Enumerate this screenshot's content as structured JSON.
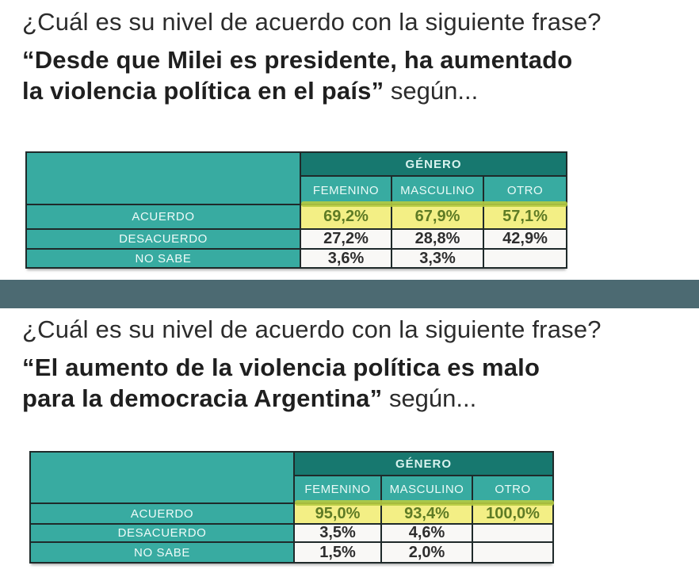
{
  "colors": {
    "teal_header_dark": "#17786f",
    "teal_cell": "#38aba1",
    "table_border": "#1f2a2a",
    "highlight_background": "#f3ef85",
    "highlight_text": "#5e7b25",
    "highlight_overshoot_strip": "#b6cb40",
    "divider_bar": "#4c6a72",
    "question_text": "#2c2c2c",
    "value_text": "#2e2e2e",
    "page_background": "#ffffff"
  },
  "sections": [
    {
      "question": "¿Cuál es su nivel de acuerdo con la siguiente frase?",
      "quote_line1": "“Desde que Milei es presidente, ha aumentado",
      "quote_line2": "la violencia política en el país”",
      "quote_suffix": " según..."
    },
    {
      "question": "¿Cuál es su nivel de acuerdo con la siguiente frase?",
      "quote_line1": "“El aumento de la violencia política es malo",
      "quote_line2": "para la democracia Argentina”",
      "quote_suffix": " según..."
    }
  ],
  "chart_data": [
    {
      "type": "table",
      "title": "Nivel de acuerdo con la frase “Desde que Milei es presidente, ha aumentado la violencia política en el país” según género",
      "group_header": "GÉNERO",
      "columns": [
        "FEMENINO",
        "MASCULINO",
        "OTRO"
      ],
      "rows": [
        {
          "label": "ACUERDO",
          "values": [
            "69,2%",
            "67,9%",
            "57,1%"
          ],
          "highlighted": true
        },
        {
          "label": "DESACUERDO",
          "values": [
            "27,2%",
            "28,8%",
            "42,9%"
          ],
          "highlighted": false
        },
        {
          "label": "NO SABE",
          "values": [
            "3,6%",
            "3,3%",
            ""
          ],
          "highlighted": false
        }
      ]
    },
    {
      "type": "table",
      "title": "Nivel de acuerdo con la frase “El aumento de la violencia política es malo para la democracia Argentina” según género",
      "group_header": "GÉNERO",
      "columns": [
        "FEMENINO",
        "MASCULINO",
        "OTRO"
      ],
      "rows": [
        {
          "label": "ACUERDO",
          "values": [
            "95,0%",
            "93,4%",
            "100,0%"
          ],
          "highlighted": true
        },
        {
          "label": "DESACUERDO",
          "values": [
            "3,5%",
            "4,6%",
            ""
          ],
          "highlighted": false
        },
        {
          "label": "NO SABE",
          "values": [
            "1,5%",
            "2,0%",
            ""
          ],
          "highlighted": false
        }
      ]
    }
  ]
}
